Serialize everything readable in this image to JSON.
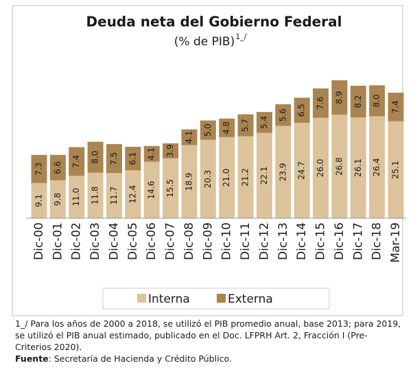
{
  "chart_data": {
    "type": "stacked_bar",
    "title": "Deuda neta del Gobierno Federal",
    "subtitle": "(% de PIB)",
    "subtitle_note": "1_/",
    "categories": [
      "Dic-00",
      "Dic-01",
      "Dic-02",
      "Dic-03",
      "Dic-04",
      "Dic-05",
      "Dic-06",
      "Dic-07",
      "Dic-08",
      "Dic-09",
      "Dic-10",
      "Dic-11",
      "Dic-12",
      "Dic-13",
      "Dic-14",
      "Dic-15",
      "Dic-16",
      "Dic-17",
      "Dic-18",
      "Mar-19"
    ],
    "series": [
      {
        "name": "Interna",
        "color": "#dcc39c",
        "values": [
          9.1,
          9.8,
          11.0,
          11.8,
          11.7,
          12.4,
          14.6,
          15.5,
          18.9,
          20.3,
          21.0,
          21.2,
          22.1,
          23.9,
          24.7,
          26.0,
          26.8,
          26.1,
          26.4,
          25.1
        ],
        "value_labels": [
          "9.1",
          "9.8",
          "11.0",
          "11.8",
          "11.7",
          "12.4",
          "14.6",
          "15.5",
          "18.9",
          "20.3",
          "21.0",
          "21.2",
          "22.1",
          "23.9",
          "24.7",
          "26.0",
          "26.8",
          "26.1",
          "26.4",
          "25.1"
        ]
      },
      {
        "name": "Externa",
        "color": "#aa8551",
        "values": [
          7.3,
          6.6,
          7.4,
          8.0,
          7.5,
          6.1,
          4.1,
          3.9,
          4.1,
          5.0,
          4.8,
          5.7,
          5.4,
          5.6,
          6.5,
          7.6,
          8.9,
          8.2,
          8.0,
          7.4
        ],
        "value_labels": [
          "7.3",
          "6.6",
          "7.4",
          "8.0",
          "7.5",
          "6.1",
          "4.1",
          "3.9",
          "4.1",
          "5.0",
          "4.8",
          "5.7",
          "5.4",
          "5.6",
          "6.5",
          "7.6",
          "8.9",
          "8.2",
          "8.0",
          "7.4"
        ]
      }
    ],
    "legend": "bottom",
    "footnote": "1_/ Para los años de 2000 a 2018, se utilizó el PIB promedio anual, base 2013; para 2019, se utilizó el PIB anual estimado, publicado en el Doc. LFPRH Art. 2, Fracción I (Pre-Criterios 2020).",
    "source_label": "Fuente",
    "source": ": Secretaría de Hacienda y Crédito Público."
  }
}
